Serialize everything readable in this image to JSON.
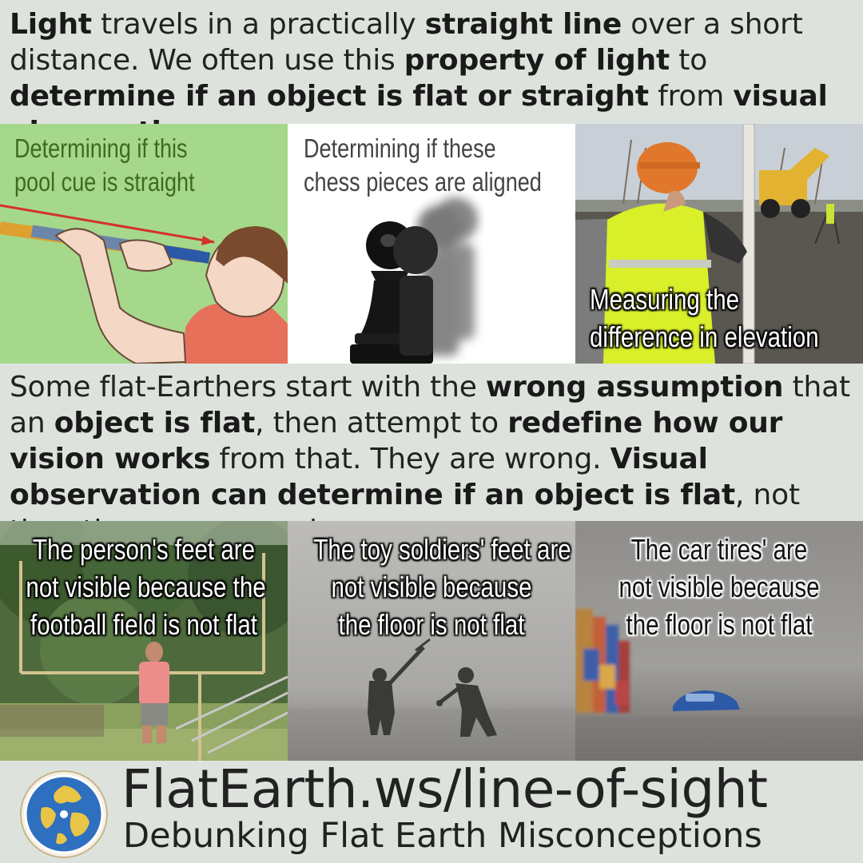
{
  "intro": {
    "p1_b": "Light",
    "p2": " travels in a practically ",
    "p3_b": "straight line",
    "p4": " over a short distance. We often use this ",
    "p5_b": "property of light",
    "p6": " to ",
    "p7_b": "determine if an object is flat or straight",
    "p8": " from ",
    "p9_b": "visual observation",
    "p10": "."
  },
  "top_panels": [
    {
      "caption_line1": "Determining if this",
      "caption_line2": "pool cue is straight"
    },
    {
      "caption_line1": "Determining if these",
      "caption_line2": "chess pieces are aligned"
    },
    {
      "caption_line1": "Measuring the",
      "caption_line2": "difference in elevation"
    }
  ],
  "middle": {
    "p1": "Some flat-Earthers start with the ",
    "p2_b": "wrong assumption",
    "p3": " that an ",
    "p4_b": "object is flat",
    "p5": ", then attempt to ",
    "p6_b": "redefine how our vision works",
    "p7": " from that. They are wrong. ",
    "p8_b": "Visual observation can determine if an object is flat",
    "p9": ", not the other way around."
  },
  "bottom_panels": [
    {
      "caption_line1": "The person's feet are",
      "caption_line2": "not visible because the",
      "caption_line3": "football field is not flat"
    },
    {
      "caption_line1": "The toy soldiers' feet are",
      "caption_line2": "not visible because",
      "caption_line3": "the floor is not flat"
    },
    {
      "caption_line1": "The car tires' are",
      "caption_line2": "not visible because",
      "caption_line3": "the floor is not flat"
    }
  ],
  "footer": {
    "url": "FlatEarth.ws/line-of-sight",
    "tagline": "Debunking Flat Earth Misconceptions",
    "logo_icon": "globe-icon"
  },
  "colors": {
    "background": "#dde3dc",
    "pool_panel_green": "#a5d88b",
    "pool_caption": "#3f6b1e",
    "cue_arrow": "#d3322a",
    "globe_blue": "#2f6fc0",
    "globe_yellow": "#e8c547"
  }
}
